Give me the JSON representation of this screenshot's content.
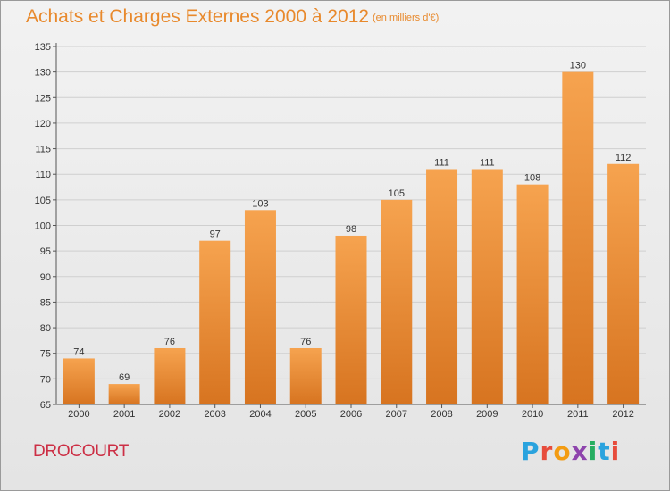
{
  "header": {
    "title": "Achats et Charges Externes 2000 à 2012",
    "subtitle": "(en milliers d'€)"
  },
  "footer": {
    "commune": "DROCOURT",
    "logo_text": "Proxiti",
    "logo_letters": [
      {
        "char": "P",
        "color": "#2aa3de"
      },
      {
        "char": "r",
        "color": "#e74c3c"
      },
      {
        "char": "o",
        "color": "#f39c12"
      },
      {
        "char": "x",
        "color": "#8e44ad"
      },
      {
        "char": "i",
        "color": "#27ae60"
      },
      {
        "char": "t",
        "color": "#2aa3de"
      },
      {
        "char": "i",
        "color": "#e74c3c"
      }
    ]
  },
  "colors": {
    "bar_light": "#f6a34f",
    "bar_dark": "#d77420",
    "grid": "#cfcfcf",
    "axis": "#555555",
    "text": "#333333"
  },
  "chart_data": {
    "type": "bar",
    "title": "Achats et Charges Externes 2000 à 2012",
    "subtitle": "(en milliers d'€)",
    "categories": [
      "2000",
      "2001",
      "2002",
      "2003",
      "2004",
      "2005",
      "2006",
      "2007",
      "2008",
      "2009",
      "2010",
      "2011",
      "2012"
    ],
    "values": [
      74,
      69,
      76,
      97,
      103,
      76,
      98,
      105,
      111,
      111,
      108,
      130,
      112
    ],
    "ylim": [
      65,
      135
    ],
    "yticks": [
      65,
      70,
      75,
      80,
      85,
      90,
      95,
      100,
      105,
      110,
      115,
      120,
      125,
      130,
      135
    ],
    "grid": true,
    "legend": "none"
  }
}
